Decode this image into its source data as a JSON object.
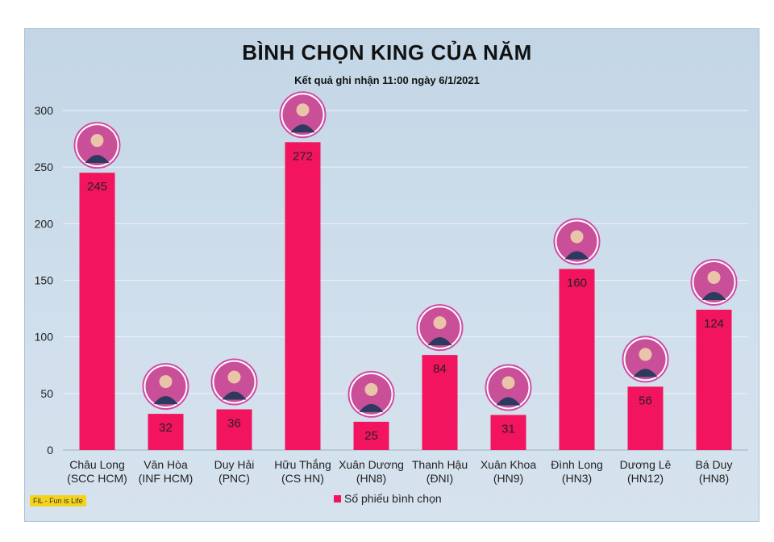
{
  "chart_data": {
    "type": "bar",
    "title": "BÌNH CHỌN KING CỦA NĂM",
    "subtitle": "Kết quả ghi nhận 11:00  ngày 6/1/2021",
    "categories": [
      [
        "Châu Long",
        "(SCC HCM)"
      ],
      [
        "Văn Hòa",
        "(INF HCM)"
      ],
      [
        "Duy Hải",
        "(PNC)"
      ],
      [
        "Hữu Thắng",
        "(CS HN)"
      ],
      [
        "Xuân Dương",
        "(HN8)"
      ],
      [
        "Thanh Hậu",
        "(ĐNI)"
      ],
      [
        "Xuân Khoa",
        "(HN9)"
      ],
      [
        "Đình Long",
        "(HN3)"
      ],
      [
        "Dương Lê",
        "(HN12)"
      ],
      [
        "Bá Duy",
        "(HN8)"
      ]
    ],
    "series": [
      {
        "name": "Số phiếu bình  chọn",
        "values": [
          245,
          32,
          36,
          272,
          25,
          84,
          31,
          160,
          56,
          124
        ]
      }
    ],
    "ylim": [
      0,
      300
    ],
    "yticks": [
      0,
      50,
      100,
      150,
      200,
      250,
      300
    ],
    "grid": true,
    "legend": "bottom-center",
    "bar_color": "#f2145e"
  },
  "brand_text": "FiL - Fun is Life"
}
